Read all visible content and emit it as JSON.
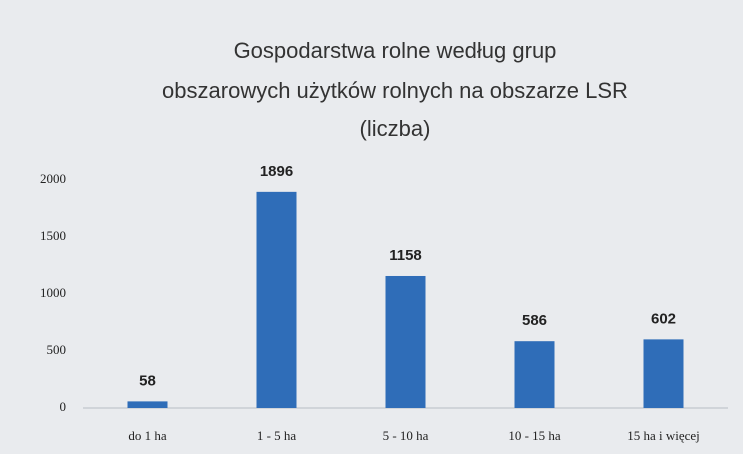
{
  "chart_data": {
    "type": "bar",
    "title_lines": [
      "Gospodarstwa rolne według grup",
      "obszarowych użytków rolnych na obszarze LSR",
      "(liczba)"
    ],
    "categories": [
      "do 1 ha",
      "1 - 5 ha",
      "5 - 10 ha",
      "10 - 15 ha",
      "15 ha i więcej"
    ],
    "values": [
      58,
      1896,
      1158,
      586,
      602
    ],
    "color": "#2f6db8",
    "ylim": [
      0,
      2000
    ],
    "yticks": [
      0,
      500,
      1000,
      1500,
      2000
    ],
    "grid": false
  }
}
